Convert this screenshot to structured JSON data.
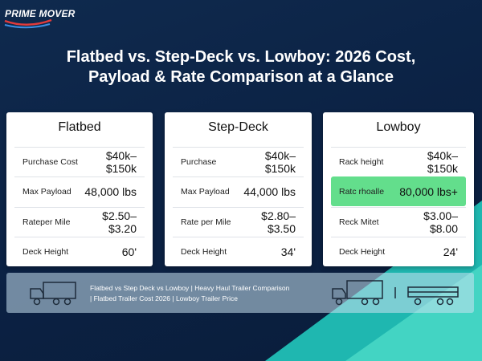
{
  "logo": "PRIME MOVER",
  "title": [
    "Flatbed vs. Step-Deck vs. Lowboy: 2026 Cost,",
    "Payload & Rate Comparison at a Glance"
  ],
  "cards": [
    {
      "name": "Flatbed",
      "rows": [
        [
          "Purchase Cost",
          "$40k–$150k"
        ],
        [
          "Max Payload",
          "48,000 lbs"
        ],
        [
          "Rateper Mile",
          "$2.50–$3.20"
        ],
        [
          "Deck Height",
          "60ʹ"
        ]
      ]
    },
    {
      "name": "Step-Deck",
      "rows": [
        [
          "Purchase",
          "$40k–$150k"
        ],
        [
          "Max Payload",
          "44,000 lbs"
        ],
        [
          "Rate per Mile",
          "$2.80–$3.50"
        ],
        [
          "Deck Height",
          "34ʹ"
        ]
      ]
    },
    {
      "name": "Lowboy",
      "rows": [
        [
          "Rack height",
          "$40k–$150k"
        ],
        [
          "Ratc rhoalle",
          "80,000 lbs+"
        ],
        [
          "Reck Mitet",
          "$3.00–$8.00"
        ],
        [
          "Deck Height",
          "24ʹ"
        ]
      ]
    }
  ],
  "footer": [
    "Flatbed vs Step Deck vs Lowboy | Heavy Haul Trailer Comparison",
    "| Flatbed Trailer Cost 2026 | Lowboy Trailer Price"
  ]
}
